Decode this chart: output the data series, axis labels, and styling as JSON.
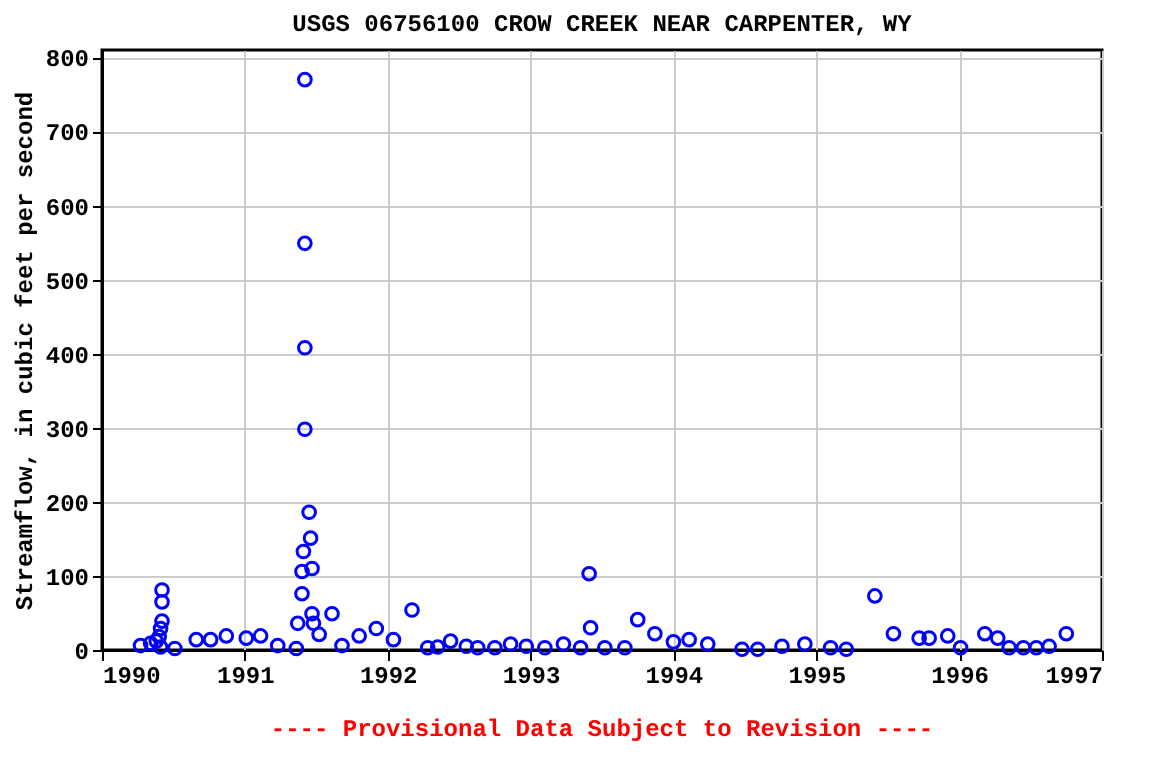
{
  "chart_data": {
    "type": "scatter",
    "title": "USGS 06756100 CROW CREEK NEAR CARPENTER, WY",
    "ylabel": "Streamflow, in cubic feet per second",
    "x": [
      1990.27,
      1990.34,
      1990.38,
      1990.4,
      1990.41,
      1990.41,
      1990.42,
      1990.42,
      1990.42,
      1990.51,
      1990.66,
      1990.76,
      1990.87,
      1991.01,
      1991.11,
      1991.23,
      1991.36,
      1991.37,
      1991.4,
      1991.4,
      1991.41,
      1991.42,
      1991.42,
      1991.42,
      1991.42,
      1991.45,
      1991.46,
      1991.47,
      1991.47,
      1991.48,
      1991.52,
      1991.61,
      1991.68,
      1991.8,
      1991.92,
      1992.04,
      1992.17,
      1992.28,
      1992.35,
      1992.44,
      1992.55,
      1992.63,
      1992.75,
      1992.86,
      1992.97,
      1993.1,
      1993.23,
      1993.35,
      1993.41,
      1993.42,
      1993.52,
      1993.66,
      1993.75,
      1993.87,
      1994.0,
      1994.11,
      1994.24,
      1994.48,
      1994.59,
      1994.76,
      1994.92,
      1995.1,
      1995.21,
      1995.41,
      1995.54,
      1995.72,
      1995.79,
      1995.92,
      1996.01,
      1996.18,
      1996.27,
      1996.35,
      1996.45,
      1996.54,
      1996.63,
      1996.75
    ],
    "series": [
      {
        "color": "#0000ff",
        "values": [
          6,
          9,
          12,
          18,
          4,
          29,
          65,
          39,
          81,
          2,
          14,
          14,
          19,
          16,
          19,
          6,
          2,
          36,
          106,
          76,
          133,
          770,
          549,
          408,
          298,
          186,
          151,
          49,
          110,
          36,
          21,
          49,
          6,
          19,
          29,
          14,
          54,
          3,
          4,
          12,
          5,
          3,
          3,
          8,
          5,
          3,
          8,
          3,
          103,
          30,
          3,
          3,
          41,
          22,
          11,
          14,
          8,
          1,
          1,
          5,
          8,
          3,
          1,
          73,
          22,
          16,
          16,
          19,
          3,
          22,
          16,
          3,
          3,
          3,
          5,
          22
        ]
      }
    ],
    "xlim": [
      1990,
      1997
    ],
    "xticks": [
      1990,
      1991,
      1992,
      1993,
      1994,
      1995,
      1996,
      1997
    ],
    "ylim": [
      0,
      810
    ],
    "yticks": [
      0,
      100,
      200,
      300,
      400,
      500,
      600,
      700,
      800
    ],
    "grid": true,
    "marker": "circle",
    "annotations": [
      "---- Provisional Data Subject to Revision ----"
    ]
  }
}
